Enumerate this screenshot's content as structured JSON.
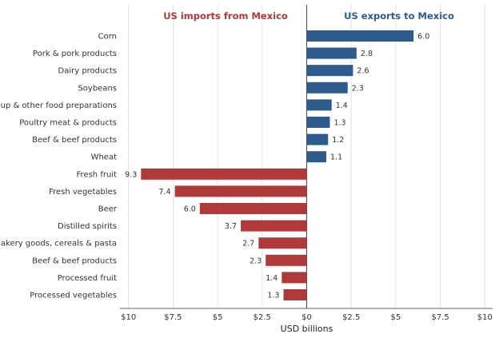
{
  "chart_data": {
    "type": "bar",
    "orientation": "horizontal",
    "xlabel": "USD billions",
    "xlim": [
      -10,
      10
    ],
    "xticks": [
      -10,
      -7.5,
      -5,
      -2.5,
      0,
      2.5,
      5,
      7.5,
      10
    ],
    "xtick_labels": [
      "$10",
      "$7.5",
      "$5",
      "$2.5",
      "$0",
      "$2.5",
      "$5",
      "$7.5",
      "$10"
    ],
    "grid": "vertical",
    "colors": {
      "exports": "#2e5b8c",
      "imports": "#b03a3a"
    },
    "section_titles": {
      "imports": "US imports from Mexico",
      "exports": "US exports to Mexico"
    },
    "series": [
      {
        "name": "US exports to Mexico",
        "direction": "positive",
        "categories": [
          "Corn",
          "Pork & pork products",
          "Dairy products",
          "Soybeans",
          "Soup & other food preparations",
          "Poultry meat & products",
          "Beef & beef products",
          "Wheat"
        ],
        "values": [
          6.0,
          2.8,
          2.6,
          2.3,
          1.4,
          1.3,
          1.2,
          1.1
        ],
        "value_labels": [
          "6.0",
          "2.8",
          "2.6",
          "2.3",
          "1.4",
          "1.3",
          "1.2",
          "1.1"
        ]
      },
      {
        "name": "US imports from Mexico",
        "direction": "negative",
        "categories": [
          "Fresh fruit",
          "Fresh vegetables",
          "Beer",
          "Distilled spirits",
          "Bakery goods, cereals & pasta",
          "Beef & beef products",
          "Processed fruit",
          "Processed vegetables"
        ],
        "values": [
          9.3,
          7.4,
          6.0,
          3.7,
          2.7,
          2.3,
          1.4,
          1.3
        ],
        "value_labels": [
          "9.3",
          "7.4",
          "6.0",
          "3.7",
          "2.7",
          "2.3",
          "1.4",
          "1.3"
        ]
      }
    ]
  }
}
